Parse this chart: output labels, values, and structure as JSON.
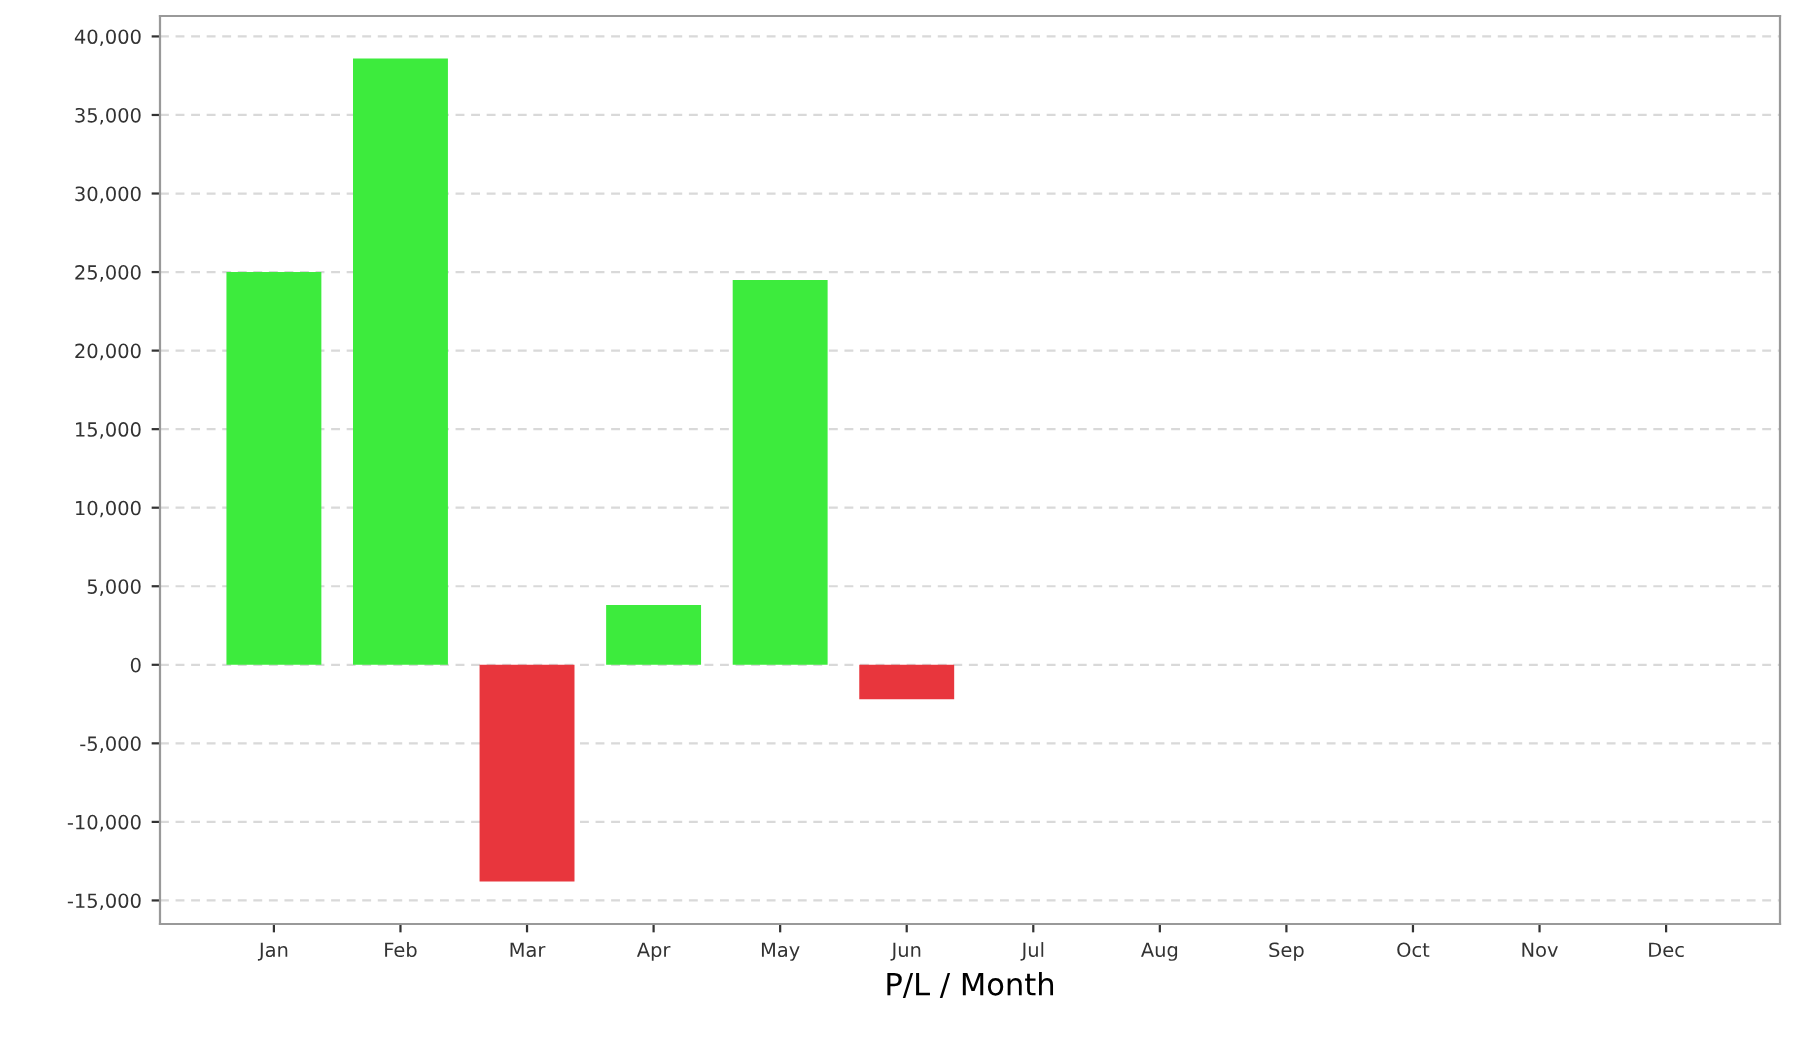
{
  "chart_data": {
    "type": "bar",
    "xlabel": "P/L / Month",
    "categories": [
      "Jan",
      "Feb",
      "Mar",
      "Apr",
      "May",
      "Jun",
      "Jul",
      "Aug",
      "Sep",
      "Oct",
      "Nov",
      "Dec"
    ],
    "values": [
      25000,
      38600,
      -13800,
      3800,
      24500,
      -2200,
      null,
      null,
      null,
      null,
      null,
      null
    ],
    "colors": [
      "#3deb3d",
      "#3deb3d",
      "#e8363d",
      "#3deb3d",
      "#3deb3d",
      "#e8363d",
      null,
      null,
      null,
      null,
      null,
      null
    ],
    "ylim": [
      -16500,
      41300
    ],
    "yticks": [
      {
        "value": -15000,
        "label": "-15,000"
      },
      {
        "value": -10000,
        "label": "-10,000"
      },
      {
        "value": -5000,
        "label": "-5,000"
      },
      0,
      {
        "value": 5000,
        "label": "5,000"
      },
      {
        "value": 10000,
        "label": "10,000"
      },
      {
        "value": 15000,
        "label": "15,000"
      },
      {
        "value": 20000,
        "label": "20,000"
      },
      {
        "value": 25000,
        "label": "25,000"
      },
      {
        "value": 30000,
        "label": "30,000"
      },
      {
        "value": 35000,
        "label": "35,000"
      },
      {
        "value": 40000,
        "label": "40,000"
      }
    ],
    "grid": "y"
  }
}
